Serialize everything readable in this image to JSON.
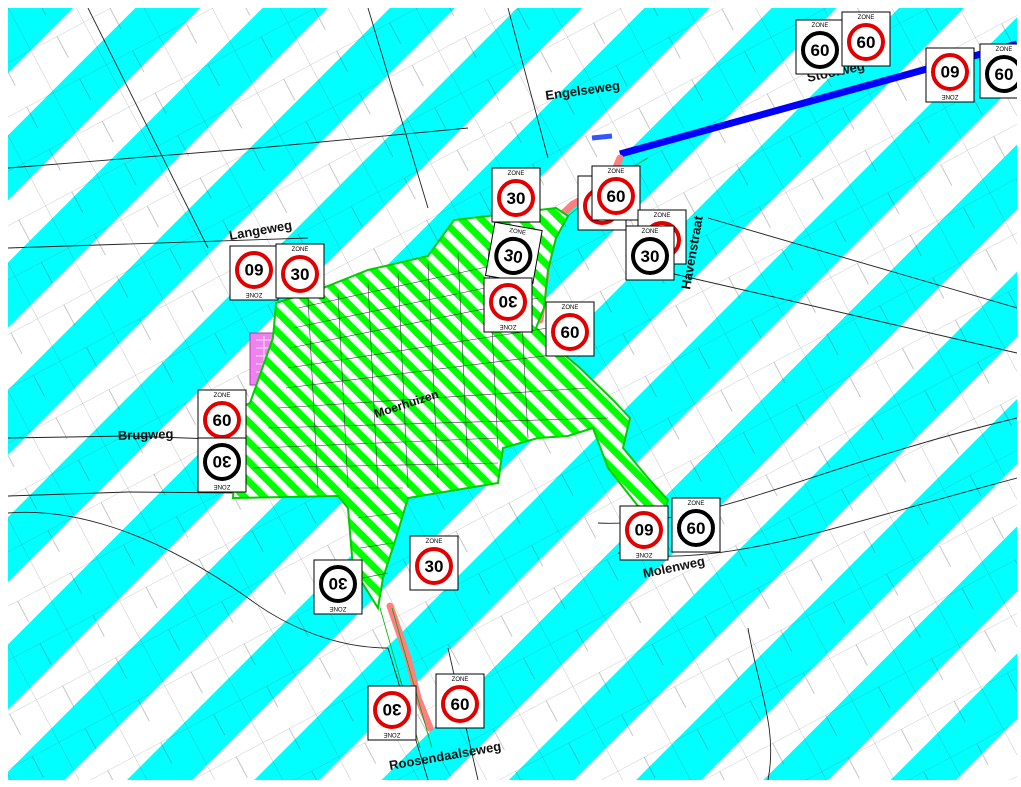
{
  "map": {
    "colors": {
      "zone_60_stripes": "#00ffff",
      "zone_30_hatch": "#00ff00",
      "road_red": "#ff8080",
      "road_blue": "#0000ff",
      "pink_area": "#ee82ee",
      "sign_red": "#e00000",
      "parcel_lines": "#333333"
    },
    "village_label": "Moerhuizen",
    "streets": [
      {
        "name": "Engelseweg"
      },
      {
        "name": "Stoofweg"
      },
      {
        "name": "Langeweg"
      },
      {
        "name": "Havenstraat"
      },
      {
        "name": "Brugweg"
      },
      {
        "name": "Molenweg"
      },
      {
        "name": "Roosendaalseweg"
      }
    ],
    "signs": [
      {
        "speed": "60",
        "zone": "ZONE",
        "style": "black-ring"
      },
      {
        "speed": "60",
        "zone": "ZONE",
        "style": "red-ring"
      },
      {
        "speed": "60",
        "zone": "ZONE",
        "style": "red-ring"
      },
      {
        "speed": "60",
        "zone": "ZONE",
        "style": "black-ring"
      },
      {
        "speed": "30",
        "zone": "ZONE",
        "style": "red-ring"
      },
      {
        "speed": "30",
        "zone": "ZONE",
        "style": "black-ring"
      },
      {
        "speed": "30",
        "zone": "ZONE",
        "style": "red-ring"
      },
      {
        "speed": "60",
        "zone": "ZONE",
        "style": "red-ring"
      },
      {
        "speed": "30",
        "zone": "ZONE",
        "style": "red-ring"
      },
      {
        "speed": "60",
        "zone": "ZONE",
        "style": "red-ring"
      },
      {
        "speed": "30",
        "zone": "ZONE",
        "style": "red-ring"
      },
      {
        "speed": "30",
        "zone": "ZONE",
        "style": "black-ring"
      },
      {
        "speed": "60",
        "zone": "ZONE",
        "style": "red-ring"
      },
      {
        "speed": "30",
        "zone": "ZONE",
        "style": "red-ring"
      },
      {
        "speed": "60",
        "zone": "ZONE",
        "style": "red-ring"
      },
      {
        "speed": "30",
        "zone": "ZONE",
        "style": "black-ring"
      },
      {
        "speed": "30",
        "zone": "ZONE",
        "style": "red-ring"
      },
      {
        "speed": "30",
        "zone": "ZONE",
        "style": "black-ring"
      },
      {
        "speed": "60",
        "zone": "ZONE",
        "style": "red-ring"
      },
      {
        "speed": "60",
        "zone": "ZONE",
        "style": "black-ring"
      },
      {
        "speed": "30",
        "zone": "ZONE",
        "style": "red-ring"
      },
      {
        "speed": "60",
        "zone": "ZONE",
        "style": "red-ring"
      }
    ]
  }
}
